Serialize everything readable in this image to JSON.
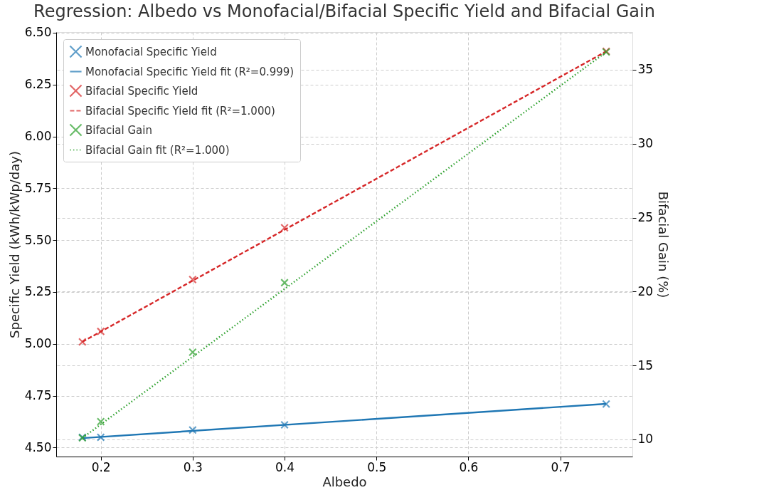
{
  "chart_data": {
    "type": "scatter",
    "title": "Regression: Albedo vs Monofacial/Bifacial Specific Yield and Bifacial Gain",
    "xlabel": "Albedo",
    "ylabel": "Specific Yield (kWh/kWp/day)",
    "y2label": "Bifacial Gain (%)",
    "xlim": [
      0.1515,
      0.7785
    ],
    "xticks": [
      0.2,
      0.3,
      0.4,
      0.5,
      0.6,
      0.7
    ],
    "ylim": [
      4.457,
      6.503
    ],
    "yticks": [
      {
        "value": 4.5,
        "label": "4.50"
      },
      4.75,
      {
        "value": 5.0,
        "label": "5.00"
      },
      5.25,
      {
        "value": 5.5,
        "label": "5.50"
      },
      5.75,
      {
        "value": 6.0,
        "label": "6.00"
      },
      6.25,
      {
        "value": 6.5,
        "label": "6.50"
      }
    ],
    "y2lim": [
      8.84,
      37.55
    ],
    "y2ticks": [
      10,
      15,
      20,
      25,
      30,
      35
    ],
    "grid": true,
    "legend": "top left",
    "series": [
      {
        "name": "Monofacial Specific Yield",
        "marker": "cross",
        "axis": "y",
        "color": "#1f77b4",
        "x": [
          0.18,
          0.2,
          0.3,
          0.4,
          0.75
        ],
        "values": [
          4.55,
          4.55,
          4.585,
          4.61,
          4.71
        ]
      },
      {
        "name": "Monofacial Specific Yield fit (R²=0.999)",
        "type": "line",
        "line_style": "solid",
        "marker": "none",
        "axis": "y",
        "color": "#1f77b4",
        "x": [
          0.18,
          0.75
        ],
        "values": [
          4.546,
          4.711
        ]
      },
      {
        "name": "Bifacial Specific Yield",
        "marker": "cross",
        "axis": "y",
        "color": "#d62728",
        "x": [
          0.18,
          0.2,
          0.3,
          0.4,
          0.75
        ],
        "values": [
          5.01,
          5.06,
          5.31,
          5.56,
          6.41
        ]
      },
      {
        "name": "Bifacial Specific Yield fit (R²=1.000)",
        "type": "line",
        "line_style": "dashed",
        "marker": "none",
        "axis": "y",
        "color": "#d62728",
        "x": [
          0.18,
          0.75
        ],
        "values": [
          5.01,
          6.41
        ]
      },
      {
        "name": "Bifacial Gain",
        "marker": "cross",
        "axis": "y2",
        "color": "#2ca02c",
        "x": [
          0.18,
          0.2,
          0.3,
          0.4,
          0.75
        ],
        "values": [
          10.1,
          11.2,
          15.9,
          20.6,
          36.2
        ]
      },
      {
        "name": "Bifacial Gain fit (R²=1.000)",
        "type": "line",
        "line_style": "dotted",
        "marker": "none",
        "axis": "y2",
        "color": "#2ca02c",
        "x": [
          0.18,
          0.75
        ],
        "values": [
          10.1,
          36.2
        ]
      }
    ]
  }
}
